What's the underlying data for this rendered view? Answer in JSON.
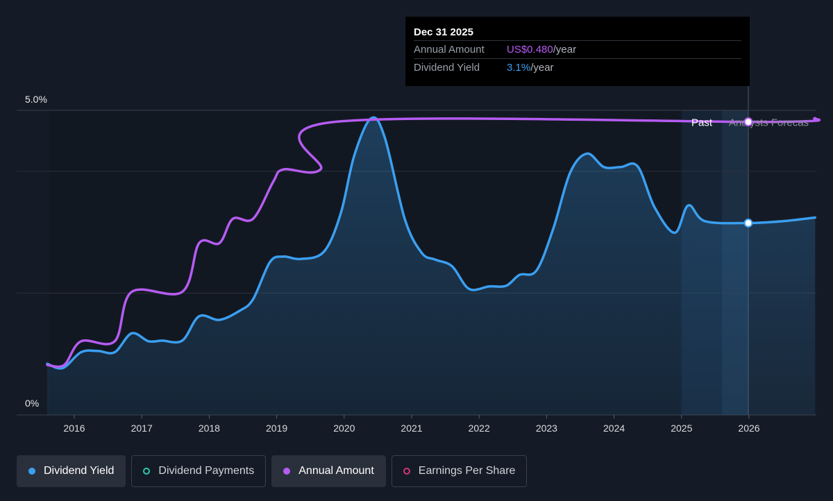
{
  "tooltip": {
    "date": "Dec 31 2025",
    "rows": [
      {
        "label": "Annual Amount",
        "value": "US$0.480",
        "unit": "/year"
      },
      {
        "label": "Dividend Yield",
        "value": "3.1%",
        "unit": "/year"
      }
    ]
  },
  "labels": {
    "past": "Past",
    "forecast": "Analysts Forecas"
  },
  "legend": [
    {
      "label": "Dividend Yield",
      "color": "#3b9ff0",
      "style": "filled"
    },
    {
      "label": "Dividend Payments",
      "color": "#2dc9b0",
      "style": "outlined"
    },
    {
      "label": "Annual Amount",
      "color": "#b65cf2",
      "style": "filled"
    },
    {
      "label": "Earnings Per Share",
      "color": "#d6337a",
      "style": "outlined"
    }
  ],
  "colors": {
    "background": "#151b26",
    "yield": "#3b9ff0",
    "amount": "#b65cf2",
    "grid": "#2f3540"
  },
  "chart_data": {
    "type": "line",
    "x_tick_labels": [
      "2016",
      "2017",
      "2018",
      "2019",
      "2020",
      "2021",
      "2022",
      "2023",
      "2024",
      "2025",
      "2026"
    ],
    "y_tick_labels": [
      "5.0%",
      "0%"
    ],
    "ylim": [
      0,
      5.0
    ],
    "xlim": [
      2015.6,
      2026.98
    ],
    "past_forecast_boundary": 2025.99,
    "series": [
      {
        "name": "Dividend Yield",
        "color": "#3b9ff0",
        "fill": true,
        "points": [
          [
            2015.6,
            0.84
          ],
          [
            2015.83,
            0.77
          ],
          [
            2016.1,
            1.03
          ],
          [
            2016.35,
            1.05
          ],
          [
            2016.6,
            1.03
          ],
          [
            2016.85,
            1.34
          ],
          [
            2017.1,
            1.21
          ],
          [
            2017.3,
            1.22
          ],
          [
            2017.6,
            1.22
          ],
          [
            2017.85,
            1.62
          ],
          [
            2018.15,
            1.56
          ],
          [
            2018.45,
            1.71
          ],
          [
            2018.65,
            1.9
          ],
          [
            2018.9,
            2.51
          ],
          [
            2019.1,
            2.6
          ],
          [
            2019.35,
            2.56
          ],
          [
            2019.7,
            2.68
          ],
          [
            2019.95,
            3.31
          ],
          [
            2020.15,
            4.26
          ],
          [
            2020.4,
            4.87
          ],
          [
            2020.6,
            4.56
          ],
          [
            2020.9,
            3.21
          ],
          [
            2021.15,
            2.66
          ],
          [
            2021.35,
            2.55
          ],
          [
            2021.6,
            2.44
          ],
          [
            2021.85,
            2.07
          ],
          [
            2022.15,
            2.11
          ],
          [
            2022.4,
            2.12
          ],
          [
            2022.6,
            2.3
          ],
          [
            2022.85,
            2.37
          ],
          [
            2023.1,
            3.06
          ],
          [
            2023.35,
            3.98
          ],
          [
            2023.6,
            4.29
          ],
          [
            2023.85,
            4.07
          ],
          [
            2024.1,
            4.07
          ],
          [
            2024.35,
            4.08
          ],
          [
            2024.6,
            3.41
          ],
          [
            2024.9,
            2.99
          ],
          [
            2025.1,
            3.44
          ],
          [
            2025.35,
            3.18
          ],
          [
            2025.99,
            3.15
          ],
          [
            2026.5,
            3.18
          ],
          [
            2026.98,
            3.24
          ]
        ]
      },
      {
        "name": "Annual Amount",
        "color": "#b65cf2",
        "fill": false,
        "points": [
          [
            2015.6,
            0.82
          ],
          [
            2015.85,
            0.82
          ],
          [
            2016.1,
            1.21
          ],
          [
            2016.6,
            1.21
          ],
          [
            2016.85,
            2.02
          ],
          [
            2017.6,
            2.02
          ],
          [
            2017.85,
            2.82
          ],
          [
            2018.15,
            2.82
          ],
          [
            2018.35,
            3.22
          ],
          [
            2018.65,
            3.22
          ],
          [
            2018.95,
            3.83
          ],
          [
            2019.1,
            4.03
          ],
          [
            2019.65,
            4.03
          ],
          [
            2019.85,
            4.81
          ],
          [
            2026.3,
            4.81
          ],
          [
            2026.98,
            4.87
          ]
        ]
      }
    ],
    "markers": [
      {
        "series": "Annual Amount",
        "x": 2025.99,
        "y": 4.81
      },
      {
        "series": "Dividend Yield",
        "x": 2025.99,
        "y": 3.15
      }
    ]
  }
}
